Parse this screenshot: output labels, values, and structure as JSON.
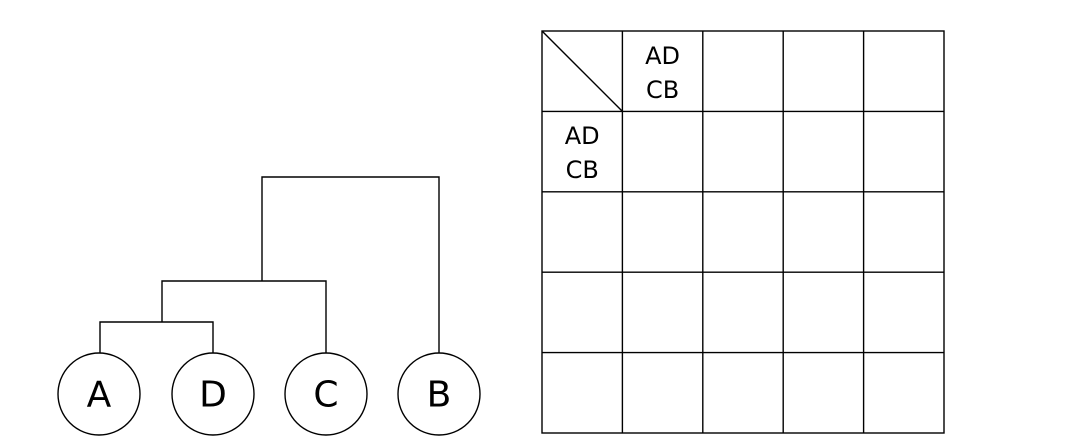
{
  "dendrogram": {
    "leaves": [
      "A",
      "D",
      "C",
      "B"
    ]
  },
  "matrix": {
    "rows": 5,
    "cols": 5,
    "col_header": {
      "line1": "AD",
      "line2": "CB"
    },
    "row_header": {
      "line1": "AD",
      "line2": "CB"
    }
  }
}
